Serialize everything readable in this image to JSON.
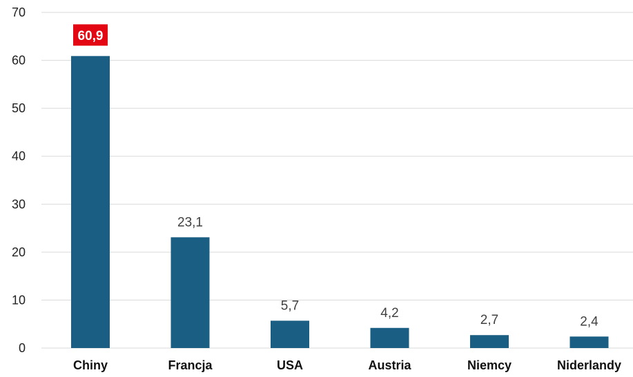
{
  "chart_data": {
    "type": "bar",
    "categories": [
      "Chiny",
      "Francja",
      "USA",
      "Austria",
      "Niemcy",
      "Niderlandy"
    ],
    "values": [
      60.9,
      23.1,
      5.7,
      4.2,
      2.7,
      2.4
    ],
    "value_labels": [
      "60,9",
      "23,1",
      "5,7",
      "4,2",
      "2,7",
      "2,4"
    ],
    "yticks": [
      "0",
      "10",
      "20",
      "30",
      "40",
      "50",
      "60",
      "70"
    ],
    "ylim": [
      0,
      70
    ],
    "grid": true,
    "highlight_index": 0,
    "title": "",
    "xlabel": "",
    "ylabel": "",
    "colors": {
      "bar": "#1a5e83",
      "highlight_label_bg": "#e30613",
      "grid": "#d9d9d9"
    }
  }
}
